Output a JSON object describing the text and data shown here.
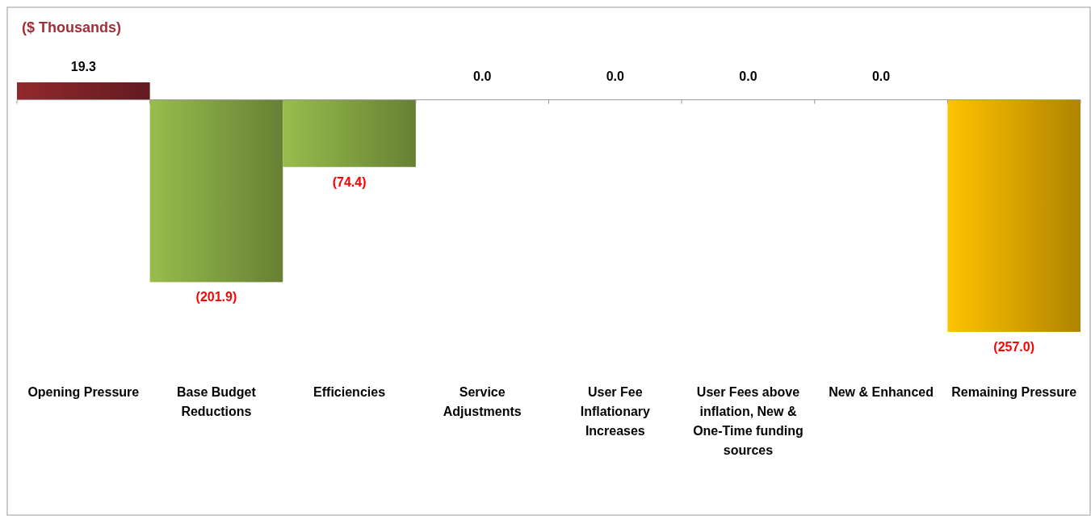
{
  "chart_data": {
    "type": "bar",
    "title": "($ Thousands)",
    "categories": [
      "Opening Pressure",
      "Base Budget Reductions",
      "Efficiencies",
      "Service Adjustments",
      "User Fee Inflationary Increases",
      "User Fees above inflation, New & One-Time funding sources",
      "New & Enhanced",
      "Remaining Pressure"
    ],
    "values": [
      19.3,
      -201.9,
      -74.4,
      0.0,
      0.0,
      0.0,
      0.0,
      -257.0
    ],
    "colors": [
      "#7a2226",
      "#7f9e40",
      "#7f9e40",
      "#7f9e40",
      "#7f9e40",
      "#7f9e40",
      "#7f9e40",
      "#d9a300"
    ],
    "value_labels": [
      "19.3",
      "(201.9)",
      "(74.4)",
      "0.0",
      "0.0",
      "0.0",
      "0.0",
      "(257.0)"
    ],
    "tick_labels": "x"
  }
}
